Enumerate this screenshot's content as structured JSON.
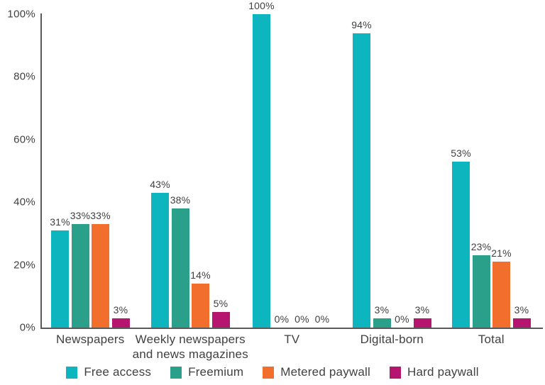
{
  "chart_data": {
    "type": "bar",
    "title": "",
    "categories": [
      "Newspapers",
      "Weekly newspapers\nand news magazines",
      "TV",
      "Digital-born",
      "Total"
    ],
    "series": [
      {
        "name": "Free access",
        "color": "#0db5bf",
        "values": [
          31,
          43,
          100,
          94,
          53
        ]
      },
      {
        "name": "Freemium",
        "color": "#2a9f8a",
        "values": [
          33,
          38,
          0,
          3,
          23
        ]
      },
      {
        "name": "Metered paywall",
        "color": "#f26e2d",
        "values": [
          33,
          14,
          0,
          0,
          21
        ]
      },
      {
        "name": "Hard paywall",
        "color": "#b5156f",
        "values": [
          3,
          5,
          0,
          3,
          3
        ]
      }
    ],
    "value_suffix": "%",
    "data_labels": true,
    "ylim": [
      0,
      100
    ],
    "yticks": [
      0,
      20,
      40,
      60,
      80,
      100
    ],
    "ytick_labels": [
      "0%",
      "20%",
      "40%",
      "60%",
      "80%",
      "100%"
    ],
    "grid": false,
    "legend_position": "bottom",
    "axis_color": "#58595b",
    "text_color": "#414042",
    "background_color": "#ffffff"
  }
}
